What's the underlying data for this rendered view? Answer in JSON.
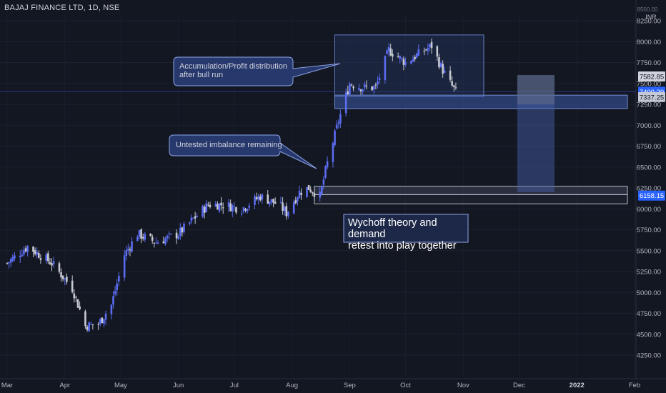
{
  "symbol_title": "BAJAJ FINANCE LTD, 1D, NSE",
  "currency_lines": [
    "8500.00",
    "INR"
  ],
  "colors": {
    "background": "#131722",
    "up_candle": "#5b6cf0",
    "down_candle": "#c8cad2",
    "box_fill": "#3a4f8f",
    "box_stroke": "#6b86d6",
    "axis_text": "#b2b5be"
  },
  "annotations": {
    "accumulation": "Accumulation/Profit distribution\nafter bull run",
    "imbalance": "Untested imbalance remaining",
    "wychoff": "Wychoff theory and demand\nretest into play together"
  },
  "price_tags": [
    {
      "label": "7582.85",
      "value": 7582.85,
      "style": "gray"
    },
    {
      "label": "7400.20",
      "value": 7400.2,
      "style": "blue"
    },
    {
      "label": "7337.25",
      "value": 7337.25,
      "style": "dark"
    },
    {
      "label": "6158.15",
      "value": 6158.15,
      "style": "blue"
    }
  ],
  "chart_data": {
    "type": "candlestick",
    "title": "BAJAJ FINANCE LTD, 1D, NSE",
    "y_axis": {
      "ticks": [
        8250,
        8000,
        7750,
        7500,
        7250,
        7000,
        6750,
        6500,
        6250,
        6000,
        5750,
        5500,
        5250,
        5000,
        4750,
        4500,
        4250
      ],
      "tick_labels": [
        "8250.00",
        "8000.00",
        "7750.00",
        "7500.00",
        "7250.00",
        "7000.00",
        "6750.00",
        "6500.00",
        "6250.00",
        "6000.00",
        "5750.00",
        "5500.00",
        "5250.00",
        "5000.00",
        "4750.00",
        "4500.00",
        "4250.00"
      ],
      "range": [
        4000,
        8550
      ],
      "unit": "INR"
    },
    "x_axis": {
      "labels": [
        "Mar",
        "Apr",
        "May",
        "Jun",
        "Jul",
        "Aug",
        "Sep",
        "Oct",
        "Nov",
        "Dec",
        "2022",
        "Feb"
      ],
      "range": [
        "2021-03-01",
        "2022-02-01"
      ]
    },
    "series_waypoints": [
      {
        "date": "2021-03-01",
        "close": 5350
      },
      {
        "date": "2021-03-12",
        "close": 5550
      },
      {
        "date": "2021-03-25",
        "close": 5350
      },
      {
        "date": "2021-04-05",
        "close": 5050
      },
      {
        "date": "2021-04-12",
        "close": 4600
      },
      {
        "date": "2021-04-19",
        "close": 4620
      },
      {
        "date": "2021-04-26",
        "close": 4850
      },
      {
        "date": "2021-05-03",
        "close": 5450
      },
      {
        "date": "2021-05-10",
        "close": 5700
      },
      {
        "date": "2021-05-20",
        "close": 5600
      },
      {
        "date": "2021-06-01",
        "close": 5700
      },
      {
        "date": "2021-06-10",
        "close": 5900
      },
      {
        "date": "2021-06-17",
        "close": 6050
      },
      {
        "date": "2021-06-25",
        "close": 6050
      },
      {
        "date": "2021-07-05",
        "close": 6000
      },
      {
        "date": "2021-07-15",
        "close": 6150
      },
      {
        "date": "2021-07-25",
        "close": 6050
      },
      {
        "date": "2021-07-29",
        "close": 5950
      },
      {
        "date": "2021-08-05",
        "close": 6200
      },
      {
        "date": "2021-08-10",
        "close": 6250
      },
      {
        "date": "2021-08-16",
        "close": 6150
      },
      {
        "date": "2021-08-20",
        "close": 6550
      },
      {
        "date": "2021-08-26",
        "close": 7050
      },
      {
        "date": "2021-09-01",
        "close": 7500
      },
      {
        "date": "2021-09-08",
        "close": 7450
      },
      {
        "date": "2021-09-15",
        "close": 7450
      },
      {
        "date": "2021-09-22",
        "close": 7900
      },
      {
        "date": "2021-10-01",
        "close": 7750
      },
      {
        "date": "2021-10-08",
        "close": 7850
      },
      {
        "date": "2021-10-15",
        "close": 7950
      },
      {
        "date": "2021-10-20",
        "close": 7700
      },
      {
        "date": "2021-10-25",
        "close": 7500
      },
      {
        "date": "2021-10-28",
        "close": 7400
      }
    ],
    "zones": [
      {
        "name": "distribution-box",
        "date_from": "2021-08-24",
        "date_to": "2021-11-12",
        "price_from": 7340,
        "price_to": 8080
      },
      {
        "name": "demand-zone-upper",
        "date_from": "2021-08-24",
        "date_to": "2022-02-01",
        "price_from": 7200,
        "price_to": 7360
      },
      {
        "name": "demand-zone-lower-a",
        "date_from": "2021-08-13",
        "date_to": "2022-02-01",
        "price_from": 6170,
        "price_to": 6270
      },
      {
        "name": "demand-zone-lower-b",
        "date_from": "2021-08-13",
        "date_to": "2022-02-01",
        "price_from": 6060,
        "price_to": 6170
      },
      {
        "name": "projection-column",
        "date_from": "2021-11-30",
        "date_to": "2021-12-20",
        "price_from": 6200,
        "price_to": 7600
      }
    ]
  }
}
